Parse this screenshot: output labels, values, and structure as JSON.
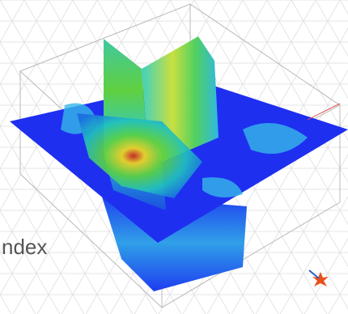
{
  "caption": "ndex"
}
